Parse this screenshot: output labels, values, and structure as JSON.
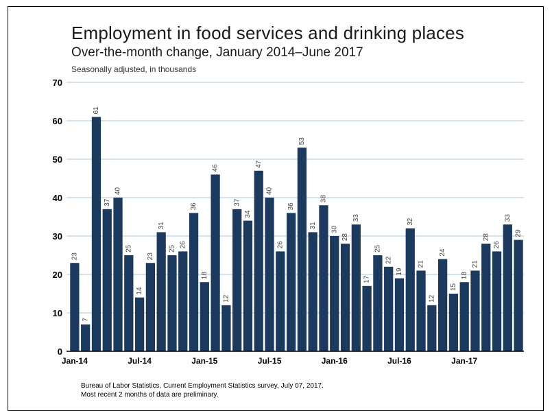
{
  "chart_data": {
    "type": "bar",
    "title": "Employment in food services and drinking places",
    "subtitle": "Over-the-month change, January 2014–June 2017",
    "units_note": "Seasonally adjusted, in thousands",
    "xlabel": "",
    "ylabel": "",
    "ylim": [
      0,
      70
    ],
    "yticks": [
      0,
      10,
      20,
      30,
      40,
      50,
      60,
      70
    ],
    "grid": true,
    "bar_color": "#1c3a5e",
    "grid_color": "#a9c4dc",
    "categories": [
      "Jan-14",
      "Feb-14",
      "Mar-14",
      "Apr-14",
      "May-14",
      "Jun-14",
      "Jul-14",
      "Aug-14",
      "Sep-14",
      "Oct-14",
      "Nov-14",
      "Dec-14",
      "Jan-15",
      "Feb-15",
      "Mar-15",
      "Apr-15",
      "May-15",
      "Jun-15",
      "Jul-15",
      "Aug-15",
      "Sep-15",
      "Oct-15",
      "Nov-15",
      "Dec-15",
      "Jan-16",
      "Feb-16",
      "Mar-16",
      "Apr-16",
      "May-16",
      "Jun-16",
      "Jul-16",
      "Aug-16",
      "Sep-16",
      "Oct-16",
      "Nov-16",
      "Dec-16",
      "Jan-17",
      "Feb-17",
      "Mar-17",
      "Apr-17",
      "May-17",
      "Jun-17"
    ],
    "xtick_labels": [
      {
        "index": 0,
        "label": "Jan-14"
      },
      {
        "index": 6,
        "label": "Jul-14"
      },
      {
        "index": 12,
        "label": "Jan-15"
      },
      {
        "index": 18,
        "label": "Jul-15"
      },
      {
        "index": 24,
        "label": "Jan-16"
      },
      {
        "index": 30,
        "label": "Jul-16"
      },
      {
        "index": 36,
        "label": "Jan-17"
      }
    ],
    "values": [
      23,
      7,
      61,
      37,
      40,
      25,
      14,
      23,
      31,
      25,
      26,
      36,
      18,
      46,
      12,
      37,
      34,
      47,
      40,
      26,
      36,
      53,
      31,
      38,
      30,
      28,
      33,
      17,
      25,
      22,
      19,
      32,
      21,
      12,
      24,
      15,
      18,
      21,
      28,
      26,
      33,
      29
    ]
  },
  "footer": {
    "source": "Bureau of Labor Statistics, Current Employment Statistics survey, July 07, 2017.",
    "note": "Most recent 2 months of data are preliminary."
  }
}
